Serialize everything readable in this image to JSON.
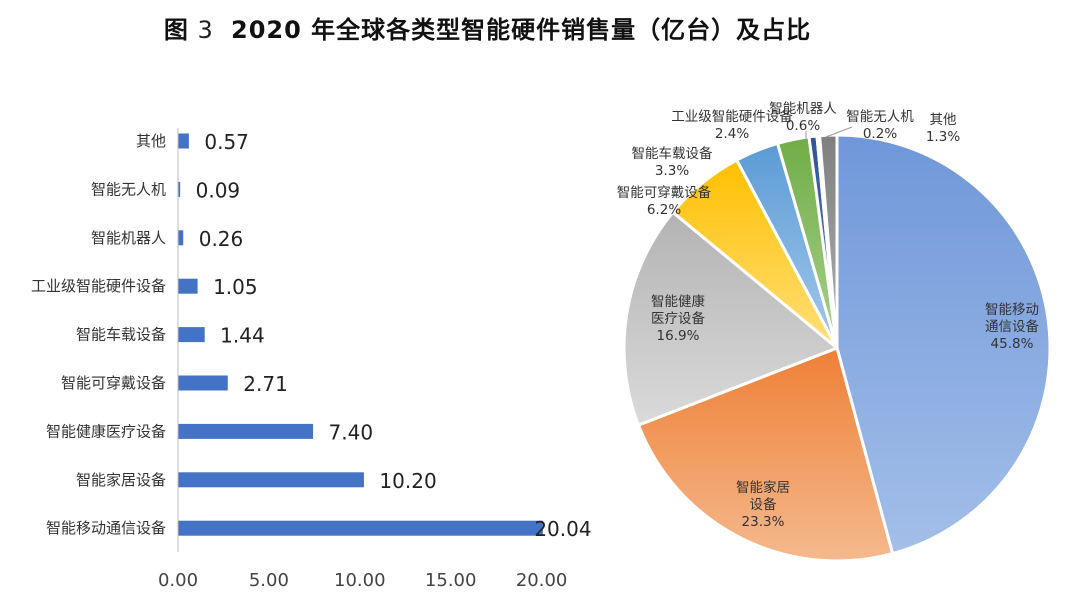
{
  "figure": {
    "label": "图",
    "number": "3",
    "title": "2020 年全球各类型智能硬件销售量（亿台）及占比"
  },
  "chart_data": [
    {
      "type": "bar",
      "orientation": "horizontal",
      "categories": [
        "其他",
        "智能无人机",
        "智能机器人",
        "工业级智能硬件设备",
        "智能车载设备",
        "智能可穿戴设备",
        "智能健康医疗设备",
        "智能家居设备",
        "智能移动通信设备"
      ],
      "values": [
        0.57,
        0.09,
        0.26,
        1.05,
        1.44,
        2.71,
        7.4,
        10.2,
        20.04
      ],
      "value_labels": [
        "0.57",
        "0.09",
        "0.26",
        "1.05",
        "1.44",
        "2.71",
        "7.40",
        "10.20",
        "20.04"
      ],
      "xlim": [
        0,
        20
      ],
      "xticks": [
        "0.00",
        "5.00",
        "10.00",
        "15.00",
        "20.00"
      ],
      "color": "#4472c4",
      "grid": false,
      "legend": "none"
    },
    {
      "type": "pie",
      "slices": [
        {
          "lines": [
            "智能移动",
            "通信设备"
          ],
          "pct": "45.8%",
          "value": 45.8,
          "color": "#6f97d9",
          "color_light": "#a3bfe9"
        },
        {
          "lines": [
            "智能家居",
            "设备"
          ],
          "pct": "23.3%",
          "value": 23.3,
          "color": "#ee8036",
          "color_light": "#f5b98d"
        },
        {
          "lines": [
            "智能健康",
            "医疗设备"
          ],
          "pct": "16.9%",
          "value": 16.9,
          "color": "#b3b3b3",
          "color_light": "#dadada"
        },
        {
          "lines": [
            "智能可穿戴设备"
          ],
          "pct": "6.2%",
          "value": 6.2,
          "color": "#ffc000",
          "color_light": "#ffdf7a"
        },
        {
          "lines": [
            "智能车载设备"
          ],
          "pct": "3.3%",
          "value": 3.3,
          "color": "#5b9bd5",
          "color_light": "#a4c8ec"
        },
        {
          "lines": [
            "工业级智能硬件设备"
          ],
          "pct": "2.4%",
          "value": 2.4,
          "color": "#70ad47",
          "color_light": "#a8d08d"
        },
        {
          "lines": [
            "智能机器人"
          ],
          "pct": "0.6%",
          "value": 0.6,
          "color": "#2f5597",
          "color_light": "#5a7fc0"
        },
        {
          "lines": [
            "智能无人机"
          ],
          "pct": "0.2%",
          "value": 0.2,
          "color": "#9dc3e6",
          "color_light": "#c9ddf1"
        },
        {
          "lines": [
            "其他"
          ],
          "pct": "1.3%",
          "value": 1.3,
          "color": "#7f7f7f",
          "color_light": "#b0b0b0"
        }
      ],
      "start_angle_deg": 0,
      "direction": "clockwise",
      "legend": "none"
    }
  ]
}
